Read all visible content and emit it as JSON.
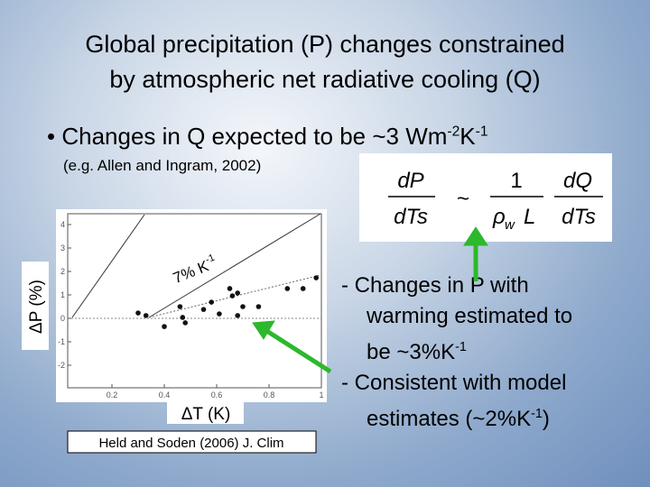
{
  "title": [
    "Global precipitation (P) changes constrained",
    "by atmospheric net radiative cooling (Q)"
  ],
  "bullet": [
    {
      "text": "• Changes in Q expected to be ~3 Wm"
    },
    {
      "text": "-2",
      "sup": true
    },
    {
      "text": "K"
    },
    {
      "text": "-1",
      "sup": true
    }
  ],
  "citation": "(e.g. Allen and Ingram, 2002)",
  "formula": {
    "lhs_num": "dP",
    "lhs_den": "dTs",
    "rel": "~",
    "one": "1",
    "rho": "ρ",
    "rho_sub": "w",
    "L": "L",
    "rhs_num": "dQ",
    "rhs_den": "dTs"
  },
  "notes": [
    [
      {
        "text": "- Changes in P with"
      }
    ],
    [
      {
        "text": "warming estimated to"
      }
    ],
    [
      {
        "text": "be ~3%K"
      },
      {
        "text": "-1",
        "sup": true
      }
    ],
    [
      {
        "text": "- Consistent with model"
      }
    ],
    [
      {
        "text": "estimates (~2%K"
      },
      {
        "text": "-1",
        "sup": true
      },
      {
        "text": ")"
      }
    ]
  ],
  "chart_data": {
    "type": "scatter",
    "xlabel": "ΔT (K)",
    "ylabel": "ΔP (%)",
    "annotation": "7% K",
    "annotation_sup": "-1",
    "source": "Held and Soden (2006) J. Clim",
    "color": "#111111",
    "x": [
      0.3,
      0.33,
      0.4,
      0.46,
      0.47,
      0.48,
      0.55,
      0.58,
      0.61,
      0.65,
      0.66,
      0.68,
      0.68,
      0.7,
      0.76,
      0.87,
      0.93,
      0.98
    ],
    "values": [
      0.23,
      0.12,
      -0.35,
      0.5,
      0.04,
      -0.19,
      0.38,
      0.69,
      0.19,
      1.27,
      0.96,
      1.08,
      0.12,
      0.5,
      0.5,
      1.27,
      1.27,
      1.73
    ],
    "xlim": [
      0,
      1
    ],
    "ylim": [
      -3,
      4.5
    ],
    "xticks": [
      0.2,
      0.4,
      0.6,
      0.8,
      1
    ],
    "yticks": [
      -2,
      -1,
      0,
      1,
      2,
      3,
      4
    ]
  }
}
